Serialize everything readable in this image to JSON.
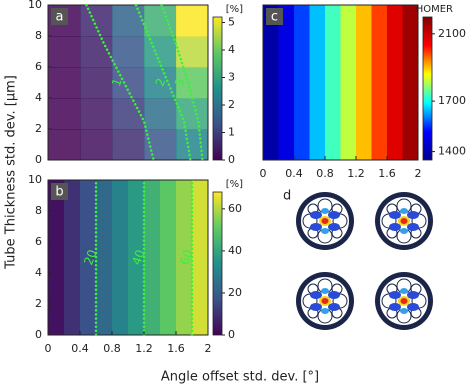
{
  "figure": {
    "xlabel": "Angle offset std. dev. [°]",
    "ylabel": "Tube Thickness std. dev. [µm]"
  },
  "chart_data": [
    {
      "type": "heatmap",
      "label": "a",
      "colormap": "viridis",
      "x": [
        0.2,
        0.6,
        1.0,
        1.4,
        1.8
      ],
      "y": [
        1,
        3,
        5,
        7,
        9
      ],
      "values": [
        [
          0.03,
          0.26,
          0.72,
          1.41,
          2.33
        ],
        [
          0.04,
          0.35,
          0.96,
          1.88,
          3.11
        ],
        [
          0.05,
          0.43,
          1.2,
          2.35,
          3.89
        ],
        [
          0.06,
          0.52,
          1.44,
          2.82,
          4.67
        ],
        [
          0.07,
          0.6,
          1.68,
          3.29,
          5.44
        ]
      ],
      "xlim": [
        0,
        2
      ],
      "ylim": [
        0,
        10
      ],
      "yticks": [
        0,
        2,
        4,
        6,
        8,
        10
      ],
      "clim": [
        0,
        5.2
      ],
      "cticks": [
        0,
        1,
        2,
        3,
        4,
        5
      ],
      "colorbar_title": "[%]",
      "contours": [
        {
          "label": "1",
          "x": [
            0.48,
            0.7,
            0.95,
            1.2,
            1.32
          ],
          "y": [
            10,
            7.5,
            5,
            2.5,
            0
          ]
        },
        {
          "label": "2",
          "x": [
            1.1,
            1.3,
            1.5,
            1.7,
            1.78
          ],
          "y": [
            10,
            7.5,
            5,
            2.5,
            0
          ]
        },
        {
          "label": "3",
          "x": [
            1.42,
            1.6,
            1.75,
            1.88,
            1.93
          ],
          "y": [
            10,
            7.5,
            5,
            2.5,
            0
          ]
        }
      ]
    },
    {
      "type": "heatmap",
      "label": "b",
      "colormap": "viridis",
      "x": [
        0.1,
        0.3,
        0.5,
        0.7,
        0.9,
        1.1,
        1.3,
        1.5,
        1.7,
        1.9
      ],
      "y": [
        5
      ],
      "values": [
        [
          3.3,
          10,
          16.7,
          23.3,
          30,
          36.7,
          43.3,
          50,
          56.7,
          63.3
        ]
      ],
      "xlim": [
        0,
        2
      ],
      "ylim": [
        0,
        10
      ],
      "yticks": [
        0,
        2,
        4,
        6,
        8,
        10
      ],
      "xticks": [
        0,
        0.4,
        0.8,
        1.2,
        1.6,
        2
      ],
      "clim": [
        0,
        68
      ],
      "cticks": [
        0,
        20,
        40,
        60
      ],
      "colorbar_title": "[%]",
      "contours": [
        {
          "label": "20",
          "x": [
            0.6,
            0.6
          ],
          "y": [
            0,
            10
          ]
        },
        {
          "label": "40",
          "x": [
            1.2,
            1.2
          ],
          "y": [
            0,
            10
          ]
        },
        {
          "label": "60",
          "x": [
            1.8,
            1.8
          ],
          "y": [
            0,
            10
          ]
        }
      ]
    },
    {
      "type": "heatmap",
      "label": "c",
      "colormap": "jet",
      "x": [
        0.1,
        0.3,
        0.5,
        0.7,
        0.9,
        1.1,
        1.3,
        1.5,
        1.7,
        1.9
      ],
      "y": [
        5
      ],
      "values": [
        [
          1393,
          1478,
          1563,
          1648,
          1733,
          1818,
          1903,
          1988,
          2073,
          2158
        ]
      ],
      "xlim": [
        0,
        2
      ],
      "ylim": [
        0,
        10
      ],
      "xticks": [
        0,
        0.4,
        0.8,
        1.2,
        1.6,
        2
      ],
      "clim": [
        1350,
        2200
      ],
      "cticks": [
        1400,
        1700,
        2100
      ],
      "colorbar_title": "HOMER"
    }
  ],
  "panel_d": {
    "label": "d"
  }
}
